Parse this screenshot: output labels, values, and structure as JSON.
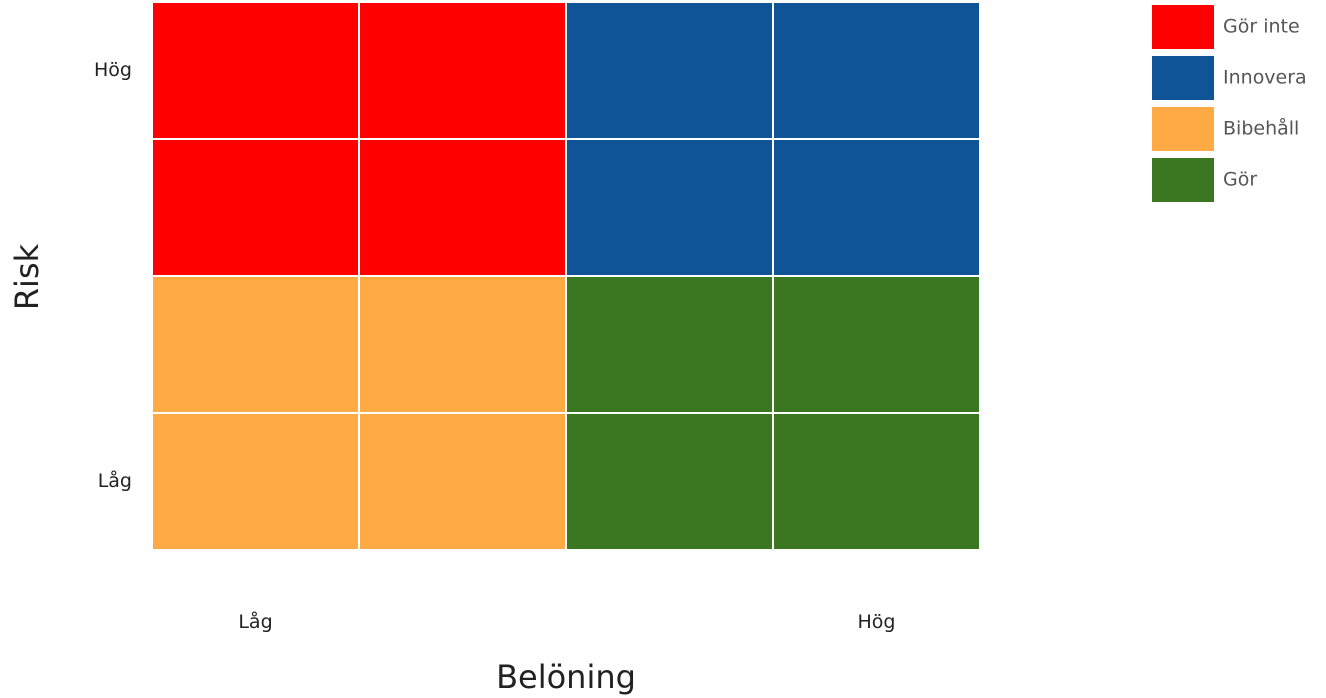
{
  "chart_data": {
    "type": "heatmap",
    "xlabel": "Belöning",
    "ylabel": "Risk",
    "x_ticks": [
      {
        "label": "Låg",
        "position": 0.5
      },
      {
        "label": "Hög",
        "position": 3.5
      }
    ],
    "y_ticks": [
      {
        "label": "Hög",
        "position": 3.5
      },
      {
        "label": "Låg",
        "position": 0.5
      }
    ],
    "columns": 4,
    "rows": 4,
    "cells": [
      [
        "Gör inte",
        "Gör inte",
        "Innovera",
        "Innovera"
      ],
      [
        "Gör inte",
        "Gör inte",
        "Innovera",
        "Innovera"
      ],
      [
        "Bibehåll",
        "Bibehåll",
        "Gör",
        "Gör"
      ],
      [
        "Bibehåll",
        "Bibehåll",
        "Gör",
        "Gör"
      ]
    ],
    "legend_position": "top-right",
    "legend": [
      {
        "name": "Gör inte",
        "color": "#ff0000"
      },
      {
        "name": "Innovera",
        "color": "#0f5496"
      },
      {
        "name": "Bibehåll",
        "color": "#ffaa44"
      },
      {
        "name": "Gör",
        "color": "#3a7720"
      }
    ],
    "grid": false
  }
}
